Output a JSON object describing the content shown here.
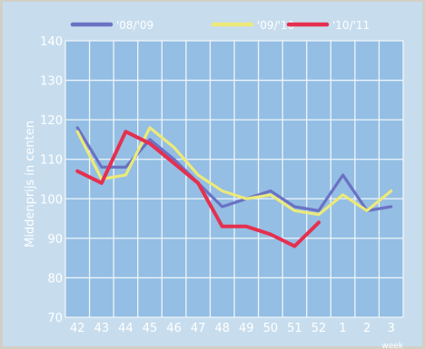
{
  "chart_data": {
    "type": "line",
    "title": "",
    "ylabel": "Middenprijs in centen",
    "xlabel": "week",
    "ylim": [
      70,
      140
    ],
    "yticks": [
      70,
      80,
      90,
      100,
      110,
      120,
      130,
      140
    ],
    "categories": [
      "42",
      "43",
      "44",
      "45",
      "46",
      "47",
      "48",
      "49",
      "50",
      "51",
      "52",
      "1",
      "2",
      "3"
    ],
    "grid": true,
    "legend_position": "top",
    "series": [
      {
        "name": "'08/'09",
        "color": "#6a72c4",
        "values": [
          118,
          108,
          108,
          115,
          110,
          104,
          98,
          100,
          102,
          98,
          97,
          106,
          97,
          98
        ]
      },
      {
        "name": "'09/'10",
        "color": "#ece97a",
        "values": [
          117,
          105,
          106,
          118,
          113,
          106,
          102,
          100,
          101,
          97,
          96,
          101,
          97,
          102
        ]
      },
      {
        "name": "'10/'11",
        "color": "#e5304f",
        "values": [
          107,
          104,
          117,
          114,
          109,
          104,
          93,
          93,
          91,
          88,
          94,
          null,
          null,
          null
        ]
      }
    ]
  }
}
